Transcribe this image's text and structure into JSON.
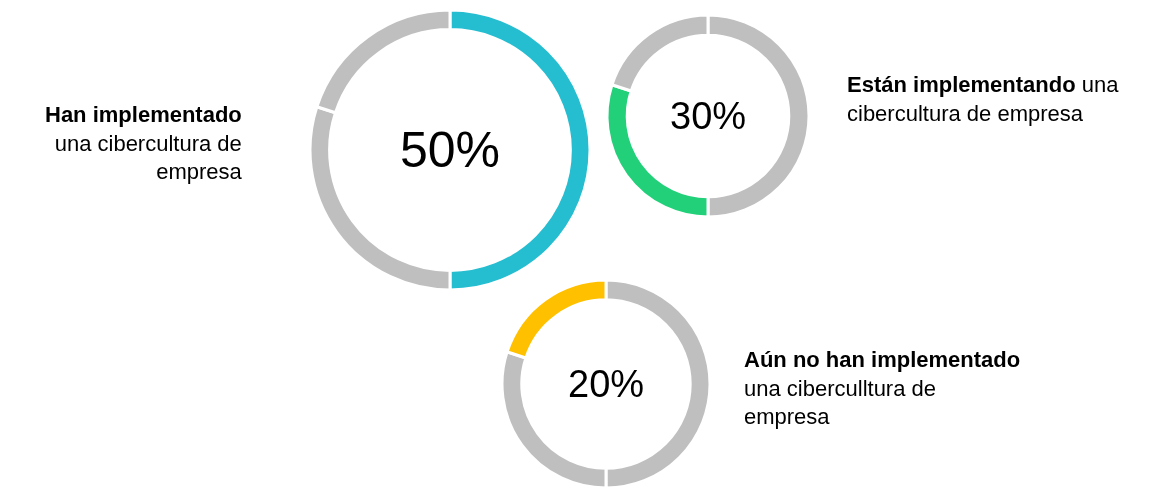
{
  "chart_data": [
    {
      "type": "donut",
      "categories": [
        null,
        null,
        null
      ],
      "values": [
        50,
        30,
        20
      ],
      "colors": [
        "#25bdd0",
        "#bfbfbf",
        "#bfbfbf"
      ],
      "annotations": [
        "50%",
        "Han implementado",
        "\nuna cibercultura de\nempresa"
      ]
    },
    {
      "type": "donut",
      "categories": [
        null,
        null,
        null
      ],
      "values": [
        50,
        30,
        20
      ],
      "colors": [
        "#bfbfbf",
        "#22d07a",
        "#bfbfbf"
      ],
      "annotations": [
        "30%",
        "Están implementando",
        " una\ncibercultura de empresa"
      ]
    },
    {
      "type": "donut",
      "categories": [
        null,
        null,
        null
      ],
      "values": [
        50,
        30,
        20
      ],
      "colors": [
        "#bfbfbf",
        "#bfbfbf",
        "#ffc000"
      ],
      "annotations": [
        "20%",
        "Aún no han implementado",
        "\nuna ciberculltura de\nempresa"
      ]
    }
  ]
}
